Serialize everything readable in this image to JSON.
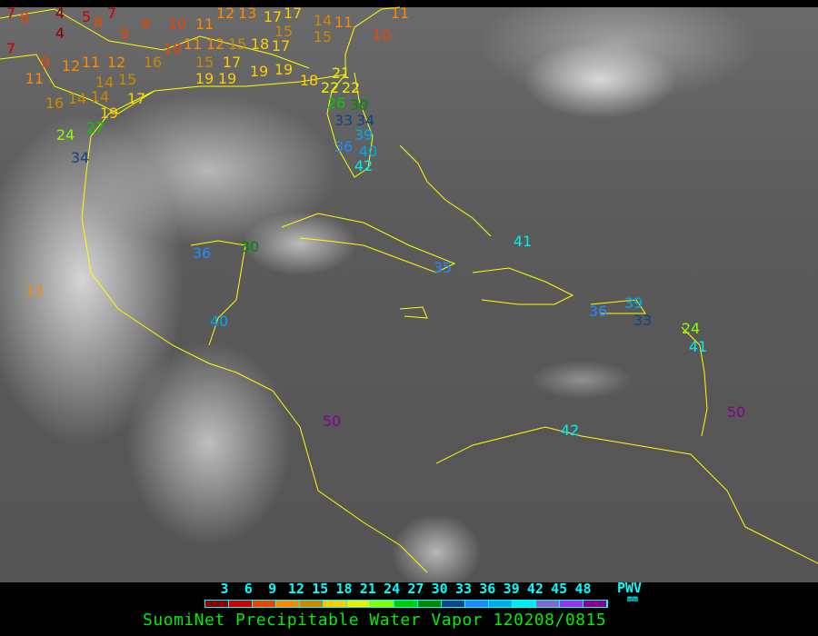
{
  "title": "SuomiNet Precipitable Water Vapor 120208/0815",
  "legend": {
    "unit_label": "PWV",
    "unit": "mm",
    "ticks": [
      "3",
      "6",
      "9",
      "12",
      "15",
      "18",
      "21",
      "24",
      "27",
      "30",
      "33",
      "36",
      "39",
      "42",
      "45",
      "48"
    ],
    "colors": [
      "#8b0000",
      "#cc0000",
      "#ee4400",
      "#ff8800",
      "#cc8800",
      "#ffcc00",
      "#eeee00",
      "#88ff00",
      "#00cc00",
      "#008800",
      "#114488",
      "#2288ff",
      "#00aaee",
      "#00eeee",
      "#8866cc",
      "#9933ee",
      "#880088"
    ]
  },
  "map": {
    "coastline_color": "#ffff00",
    "stations": [
      "7",
      "8",
      "4",
      "5",
      "4",
      "7",
      "8",
      "9",
      "9",
      "7",
      "9",
      "12",
      "11",
      "12",
      "11",
      "16",
      "15",
      "14",
      "10",
      "11",
      "10",
      "11",
      "12",
      "15",
      "18",
      "17",
      "15",
      "15",
      "17",
      "19",
      "19",
      "19",
      "19",
      "12",
      "13",
      "17",
      "17",
      "15",
      "14",
      "11",
      "10",
      "11",
      "18",
      "16",
      "14",
      "14",
      "19",
      "17",
      "24",
      "27",
      "34",
      "21",
      "22",
      "22",
      "30",
      "26",
      "33",
      "34",
      "39",
      "36",
      "40",
      "42",
      "36",
      "30",
      "13",
      "40",
      "50",
      "35",
      "41",
      "36",
      "39",
      "33",
      "24",
      "41",
      "50",
      "42"
    ]
  }
}
